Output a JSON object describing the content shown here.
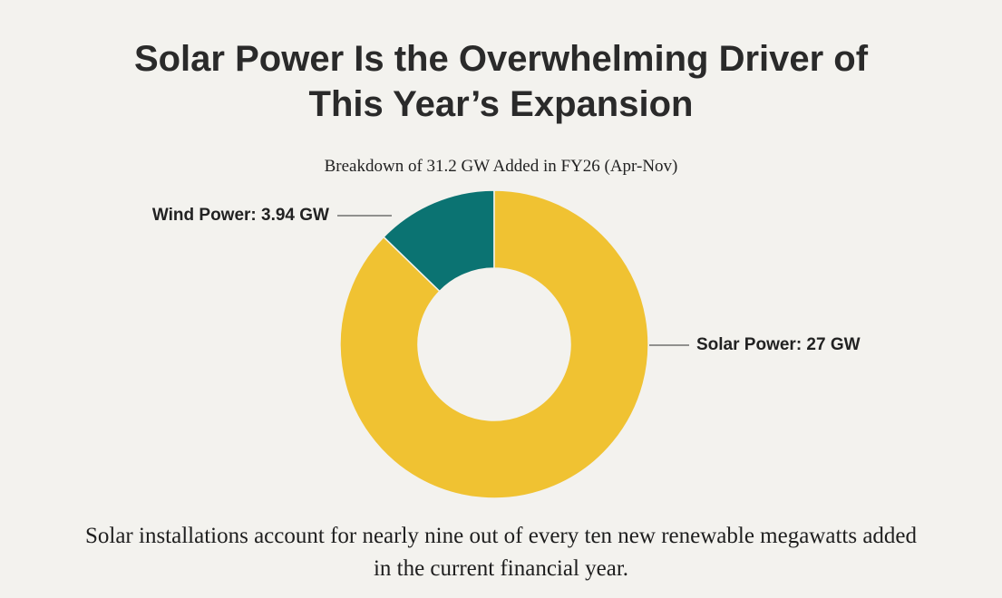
{
  "chart_data": {
    "type": "donut",
    "title": "Solar Power Is the Overwhelming Driver of This Year’s Expansion",
    "subtitle": "Breakdown of 31.2 GW Added in FY26 (Apr-Nov)",
    "values": [
      3.94,
      27
    ],
    "value_labels": [
      "Wind Power: 3.94 GW",
      "Solar Power: 27 GW"
    ],
    "colors": [
      "#0b7372",
      "#f0c232"
    ],
    "footnote": "Solar installations account for nearly nine out of every ten new renewable megawatts added in the current financial year."
  }
}
